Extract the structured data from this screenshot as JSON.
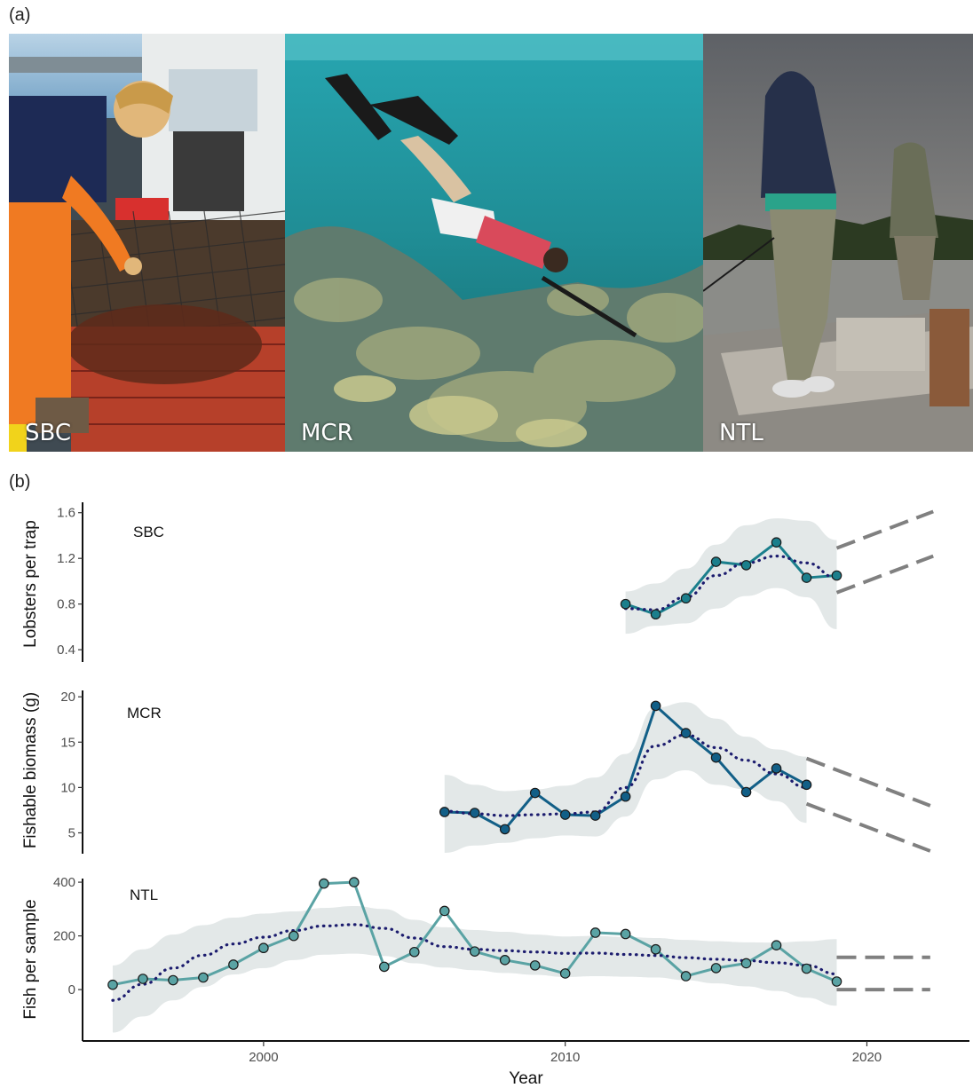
{
  "panel_a_label": "(a)",
  "panel_b_label": "(b)",
  "photos": [
    {
      "caption": "SBC"
    },
    {
      "caption": "MCR"
    },
    {
      "caption": "NTL"
    }
  ],
  "colors": {
    "sbc_line": "#1b7f8c",
    "mcr_line": "#125f87",
    "ntl_line": "#5aa3a4",
    "trend_dotted": "#1c1c6e",
    "ribbon": "#e3e8e8",
    "projection": "#808080"
  },
  "chart_data": {
    "type": "line",
    "xlabel": "Year",
    "x_ticks": [
      2000,
      2010,
      2020
    ],
    "xlim": [
      1994,
      2023.4
    ],
    "panels": [
      {
        "site": "SBC",
        "ylabel": "Lobsters per trap",
        "ylim": [
          0.3,
          1.66
        ],
        "y_ticks": [
          "0.4",
          "0.8",
          "1.2",
          "1.6"
        ],
        "y_tick_values": [
          0.4,
          0.8,
          1.2,
          1.6
        ],
        "observed": {
          "x": [
            2012,
            2013,
            2014,
            2015,
            2016,
            2017,
            2018,
            2019
          ],
          "y": [
            0.8,
            0.71,
            0.85,
            1.17,
            1.14,
            1.34,
            1.03,
            1.05
          ]
        },
        "trend": {
          "x": [
            2012,
            2013,
            2014,
            2015,
            2016,
            2017,
            2018,
            2019
          ],
          "y": [
            0.76,
            0.75,
            0.86,
            1.05,
            1.16,
            1.22,
            1.16,
            1.03
          ]
        },
        "ribbon_upper": [
          0.91,
          0.98,
          1.11,
          1.32,
          1.49,
          1.55,
          1.53,
          1.36
        ],
        "ribbon_lower": [
          0.54,
          0.61,
          0.63,
          0.76,
          0.87,
          0.94,
          0.86,
          0.58
        ],
        "projection": {
          "x": [
            2019,
            2022.2
          ],
          "upper": [
            1.29,
            1.61
          ],
          "lower": [
            0.9,
            1.22
          ]
        }
      },
      {
        "site": "MCR",
        "ylabel": "Fishable biomass (g)",
        "ylim": [
          2.7,
          20.8
        ],
        "y_ticks": [
          "5",
          "10",
          "15",
          "20"
        ],
        "y_tick_values": [
          5,
          10,
          15,
          20
        ],
        "observed": {
          "x": [
            2006,
            2007,
            2008,
            2009,
            2010,
            2011,
            2012,
            2013,
            2014,
            2015,
            2016,
            2017,
            2018
          ],
          "y": [
            7.3,
            7.2,
            5.4,
            9.4,
            7.0,
            6.9,
            9.0,
            19.0,
            16.0,
            13.3,
            9.5,
            12.1,
            10.3
          ]
        },
        "trend": {
          "x": [
            2006,
            2007,
            2008,
            2009,
            2010,
            2011,
            2012,
            2013,
            2014,
            2015,
            2016,
            2017,
            2018
          ],
          "y": [
            7.4,
            7.1,
            6.9,
            7.0,
            7.1,
            7.3,
            10.0,
            14.6,
            15.8,
            14.4,
            13.0,
            11.5,
            10.0
          ]
        },
        "ribbon_upper": [
          11.4,
          10.3,
          9.6,
          9.8,
          10.2,
          11.1,
          13.7,
          18.8,
          19.4,
          17.6,
          15.6,
          14.2,
          13.4
        ],
        "ribbon_lower": [
          2.8,
          3.6,
          3.9,
          4.4,
          4.7,
          4.6,
          6.8,
          10.9,
          11.9,
          10.3,
          9.8,
          8.5,
          6.1
        ],
        "projection": {
          "x": [
            2018,
            2022.1
          ],
          "upper": [
            13.2,
            8.0
          ],
          "lower": [
            8.2,
            3.0
          ]
        }
      },
      {
        "site": "NTL",
        "ylabel": "Fish per sample",
        "ylim": [
          -188,
          430
        ],
        "y_ticks": [
          "0",
          "200",
          "400"
        ],
        "y_tick_values": [
          0,
          200,
          400
        ],
        "observed": {
          "x": [
            1995,
            1996,
            1997,
            1998,
            1999,
            2000,
            2001,
            2002,
            2003,
            2004,
            2005,
            2006,
            2007,
            2008,
            2009,
            2010,
            2011,
            2012,
            2013,
            2014,
            2015,
            2016,
            2017,
            2018,
            2019
          ],
          "y": [
            18,
            40,
            35,
            45,
            93,
            155,
            200,
            395,
            400,
            85,
            140,
            293,
            142,
            110,
            90,
            60,
            212,
            207,
            150,
            50,
            80,
            98,
            165,
            78,
            30
          ]
        },
        "trend": {
          "x": [
            1995,
            1996,
            1997,
            1998,
            1999,
            2000,
            2001,
            2002,
            2003,
            2004,
            2005,
            2006,
            2007,
            2008,
            2009,
            2010,
            2011,
            2012,
            2013,
            2014,
            2015,
            2016,
            2017,
            2018,
            2019
          ],
          "y": [
            -40,
            20,
            80,
            128,
            170,
            195,
            220,
            237,
            242,
            228,
            192,
            160,
            150,
            145,
            140,
            135,
            136,
            131,
            127,
            119,
            113,
            108,
            100,
            90,
            58
          ]
        },
        "ribbon_upper": [
          90,
          150,
          205,
          240,
          268,
          283,
          291,
          304,
          311,
          300,
          260,
          232,
          222,
          215,
          205,
          198,
          200,
          196,
          192,
          185,
          180,
          176,
          175,
          180,
          188
        ],
        "ribbon_lower": [
          -160,
          -100,
          -40,
          10,
          56,
          80,
          110,
          130,
          134,
          125,
          98,
          82,
          72,
          62,
          55,
          47,
          50,
          48,
          45,
          35,
          23,
          12,
          -5,
          -30,
          -60
        ],
        "projection": {
          "x": [
            2019,
            2022.1
          ],
          "upper": [
            120,
            120
          ],
          "lower": [
            0,
            0
          ]
        }
      }
    ]
  }
}
